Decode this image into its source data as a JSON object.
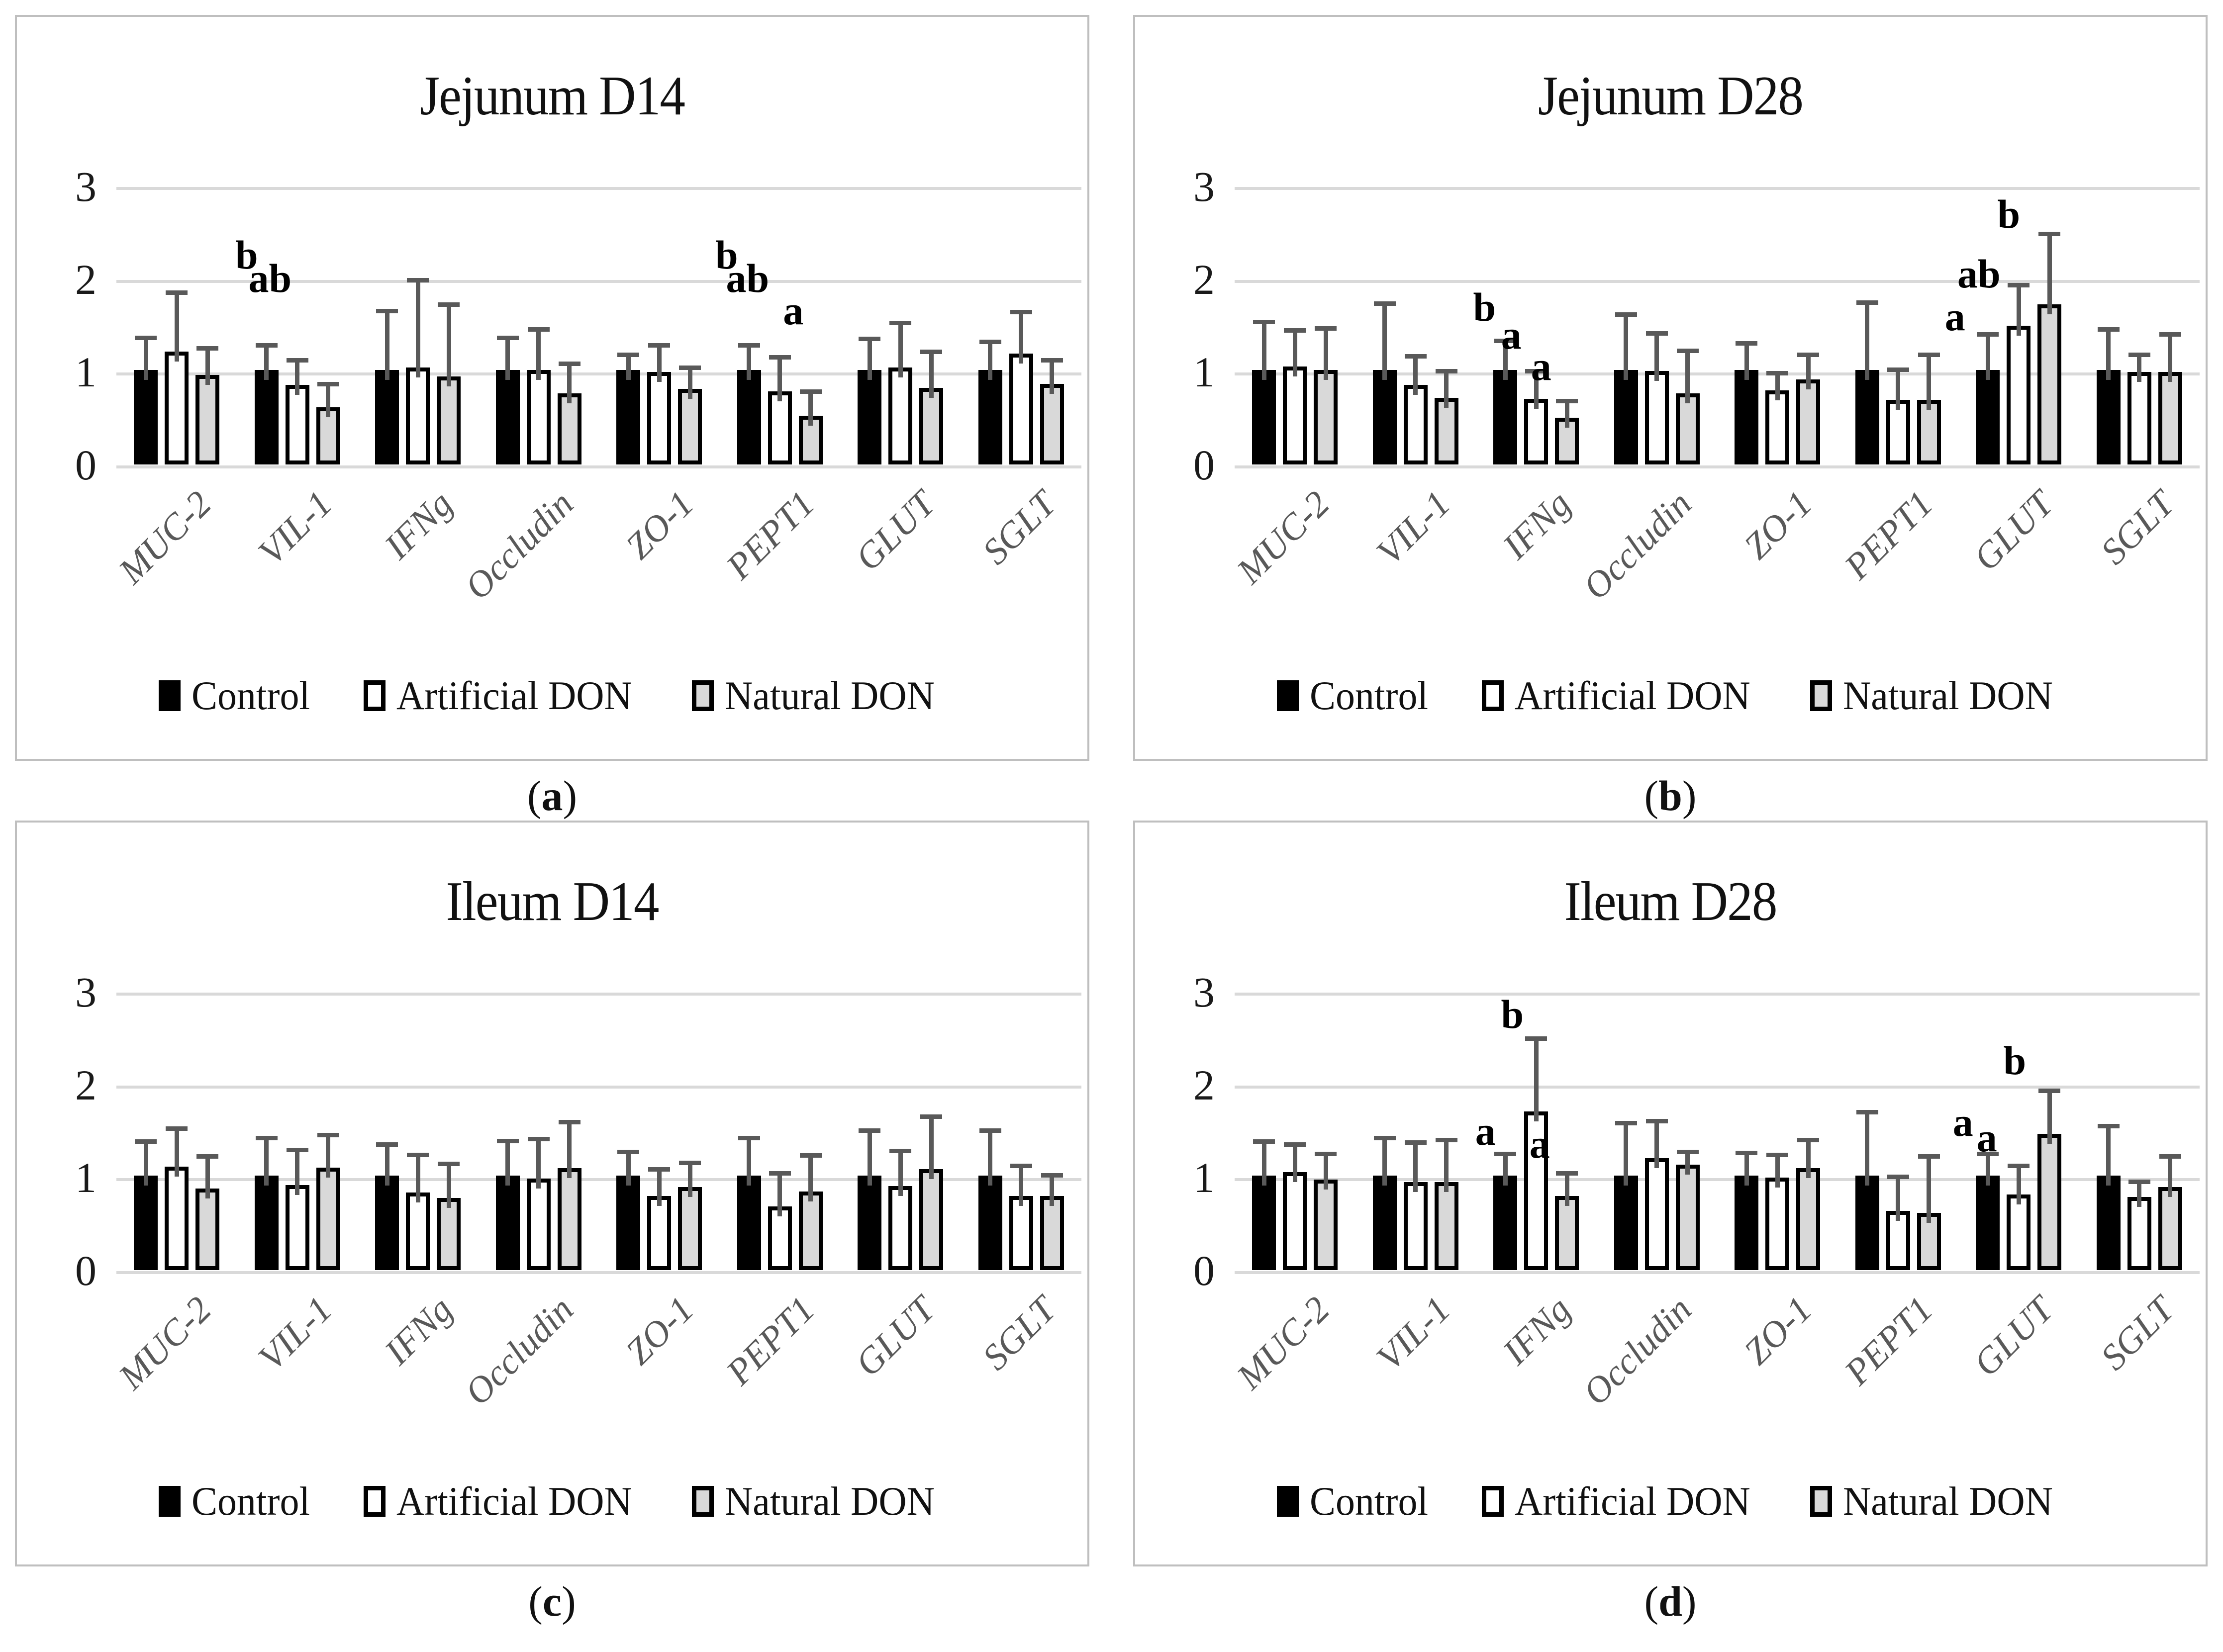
{
  "figure": {
    "colors": {
      "control_fill": "#000000",
      "artificial_fill": "#ffffff",
      "natural_fill": "#d9d9d9",
      "bar_border": "#000000",
      "error_bar": "#595959",
      "gridline": "#d9d9d9",
      "panel_border": "#bfbfbf",
      "category_text": "#595959"
    },
    "legend": [
      {
        "name": "control",
        "label": "Control",
        "fill": "#000000"
      },
      {
        "name": "artificial-don",
        "label": "Artificial DON",
        "fill": "#ffffff"
      },
      {
        "name": "natural-don",
        "label": "Natural DON",
        "fill": "#d9d9d9"
      }
    ]
  },
  "chart_data": [
    {
      "type": "bar",
      "title": "Jejunum D14",
      "caption": "a",
      "xlabel": "",
      "ylabel": "",
      "ylim": [
        0,
        3
      ],
      "y_ticks": [
        "0",
        "1",
        "2",
        "3"
      ],
      "grid": true,
      "legend_position": "bottom",
      "categories": [
        "MUC-2",
        "VIL-1",
        "IFNg",
        "Occludin",
        "ZO-1",
        "PEPT1",
        "GLUT",
        "SGLT"
      ],
      "series": [
        {
          "name": "Control",
          "values": [
            1.0,
            1.0,
            1.0,
            1.0,
            1.0,
            1.0,
            1.0,
            1.0
          ],
          "error_tops": [
            1.36,
            1.28,
            1.65,
            1.36,
            1.18,
            1.28,
            1.35,
            1.32
          ]
        },
        {
          "name": "Artificial DON",
          "values": [
            1.2,
            0.84,
            1.03,
            1.0,
            0.98,
            0.77,
            1.03,
            1.18
          ],
          "error_tops": [
            1.85,
            1.12,
            1.98,
            1.45,
            1.28,
            1.15,
            1.52,
            1.64
          ]
        },
        {
          "name": "Natural DON",
          "values": [
            0.95,
            0.6,
            0.93,
            0.75,
            0.8,
            0.51,
            0.81,
            0.85
          ],
          "error_tops": [
            1.25,
            0.86,
            1.72,
            1.08,
            1.04,
            0.78,
            1.21,
            1.12
          ]
        }
      ],
      "letters": [
        {
          "category_index": 1,
          "series_index": 0,
          "text": "b",
          "y": 2.28,
          "dx": -40
        },
        {
          "category_index": 1,
          "series_index": 1,
          "text": "ab",
          "y": 2.03,
          "dx": -55
        },
        {
          "category_index": 5,
          "series_index": 0,
          "text": "b",
          "y": 2.28,
          "dx": -45
        },
        {
          "category_index": 5,
          "series_index": 1,
          "text": "ab",
          "y": 2.03,
          "dx": -65
        },
        {
          "category_index": 5,
          "series_index": 2,
          "text": "a",
          "y": 1.68,
          "dx": -35
        }
      ]
    },
    {
      "type": "bar",
      "title": "Jejunum D28",
      "caption": "b",
      "xlabel": "",
      "ylabel": "",
      "ylim": [
        0,
        3
      ],
      "y_ticks": [
        "0",
        "1",
        "2",
        "3"
      ],
      "grid": true,
      "legend_position": "bottom",
      "categories": [
        "MUC-2",
        "VIL-1",
        "IFNg",
        "Occludin",
        "ZO-1",
        "PEPT1",
        "GLUT",
        "SGLT"
      ],
      "series": [
        {
          "name": "Control",
          "values": [
            1.0,
            1.0,
            1.0,
            1.0,
            1.0,
            1.0,
            1.0,
            1.0
          ],
          "error_tops": [
            1.53,
            1.73,
            1.33,
            1.61,
            1.3,
            1.74,
            1.4,
            1.45
          ]
        },
        {
          "name": "Artificial DON",
          "values": [
            1.04,
            0.84,
            0.69,
            0.99,
            0.78,
            0.68,
            1.48,
            0.98
          ],
          "error_tops": [
            1.44,
            1.16,
            1.0,
            1.41,
            0.98,
            1.02,
            1.93,
            1.18
          ]
        },
        {
          "name": "Natural DON",
          "values": [
            1.0,
            0.7,
            0.49,
            0.75,
            0.9,
            0.68,
            1.71,
            0.98
          ],
          "error_tops": [
            1.46,
            1.0,
            0.68,
            1.22,
            1.18,
            1.18,
            2.48,
            1.4
          ]
        }
      ],
      "letters": [
        {
          "category_index": 2,
          "series_index": 0,
          "text": "b",
          "y": 1.72,
          "dx": -42
        },
        {
          "category_index": 2,
          "series_index": 1,
          "text": "a",
          "y": 1.42,
          "dx": -50
        },
        {
          "category_index": 2,
          "series_index": 2,
          "text": "a",
          "y": 1.08,
          "dx": -52
        },
        {
          "category_index": 6,
          "series_index": 0,
          "text": "a",
          "y": 1.62,
          "dx": -66
        },
        {
          "category_index": 6,
          "series_index": 1,
          "text": "ab",
          "y": 2.08,
          "dx": -80
        },
        {
          "category_index": 6,
          "series_index": 2,
          "text": "b",
          "y": 2.72,
          "dx": -82
        }
      ]
    },
    {
      "type": "bar",
      "title": "Ileum D14",
      "caption": "c",
      "xlabel": "",
      "ylabel": "",
      "ylim": [
        0,
        3
      ],
      "y_ticks": [
        "0",
        "1",
        "2",
        "3"
      ],
      "grid": true,
      "legend_position": "bottom",
      "categories": [
        "MUC-2",
        "VIL-1",
        "IFNg",
        "Occludin",
        "ZO-1",
        "PEPT1",
        "GLUT",
        "SGLT"
      ],
      "series": [
        {
          "name": "Control",
          "values": [
            1.0,
            1.0,
            1.0,
            1.0,
            1.0,
            1.0,
            1.0,
            1.0
          ],
          "error_tops": [
            1.38,
            1.42,
            1.35,
            1.39,
            1.27,
            1.42,
            1.5,
            1.5
          ]
        },
        {
          "name": "Artificial DON",
          "values": [
            1.1,
            0.9,
            0.82,
            0.97,
            0.78,
            0.67,
            0.89,
            0.78
          ],
          "error_tops": [
            1.52,
            1.29,
            1.24,
            1.41,
            1.08,
            1.04,
            1.28,
            1.12
          ]
        },
        {
          "name": "Natural DON",
          "values": [
            0.86,
            1.09,
            0.76,
            1.08,
            0.88,
            0.83,
            1.07,
            0.78
          ],
          "error_tops": [
            1.22,
            1.45,
            1.14,
            1.59,
            1.15,
            1.23,
            1.65,
            1.02
          ]
        }
      ],
      "letters": []
    },
    {
      "type": "bar",
      "title": "Ileum D28",
      "caption": "d",
      "xlabel": "",
      "ylabel": "",
      "ylim": [
        0,
        3
      ],
      "y_ticks": [
        "0",
        "1",
        "2",
        "3"
      ],
      "grid": true,
      "legend_position": "bottom",
      "categories": [
        "MUC-2",
        "VIL-1",
        "IFNg",
        "Occludin",
        "ZO-1",
        "PEPT1",
        "GLUT",
        "SGLT"
      ],
      "series": [
        {
          "name": "Control",
          "values": [
            1.0,
            1.0,
            1.0,
            1.0,
            1.0,
            1.0,
            1.0,
            1.0
          ],
          "error_tops": [
            1.38,
            1.42,
            1.25,
            1.58,
            1.26,
            1.7,
            1.25,
            1.55
          ]
        },
        {
          "name": "Artificial DON",
          "values": [
            1.04,
            0.93,
            1.69,
            1.19,
            0.98,
            0.62,
            0.8,
            0.77
          ],
          "error_tops": [
            1.35,
            1.37,
            2.49,
            1.6,
            1.24,
            1.0,
            1.12,
            0.95
          ]
        },
        {
          "name": "Natural DON",
          "values": [
            0.96,
            0.93,
            0.78,
            1.12,
            1.08,
            0.6,
            1.45,
            0.88
          ],
          "error_tops": [
            1.25,
            1.4,
            1.04,
            1.27,
            1.4,
            1.22,
            1.93,
            1.22
          ]
        }
      ],
      "letters": [
        {
          "category_index": 2,
          "series_index": 0,
          "text": "a",
          "y": 1.52,
          "dx": -40
        },
        {
          "category_index": 2,
          "series_index": 1,
          "text": "b",
          "y": 2.78,
          "dx": -48
        },
        {
          "category_index": 2,
          "series_index": 2,
          "text": "a",
          "y": 1.38,
          "dx": -55
        },
        {
          "category_index": 6,
          "series_index": 0,
          "text": "a",
          "y": 1.62,
          "dx": -50
        },
        {
          "category_index": 6,
          "series_index": 1,
          "text": "a",
          "y": 1.45,
          "dx": -64
        },
        {
          "category_index": 6,
          "series_index": 2,
          "text": "b",
          "y": 2.28,
          "dx": -70
        }
      ]
    }
  ]
}
